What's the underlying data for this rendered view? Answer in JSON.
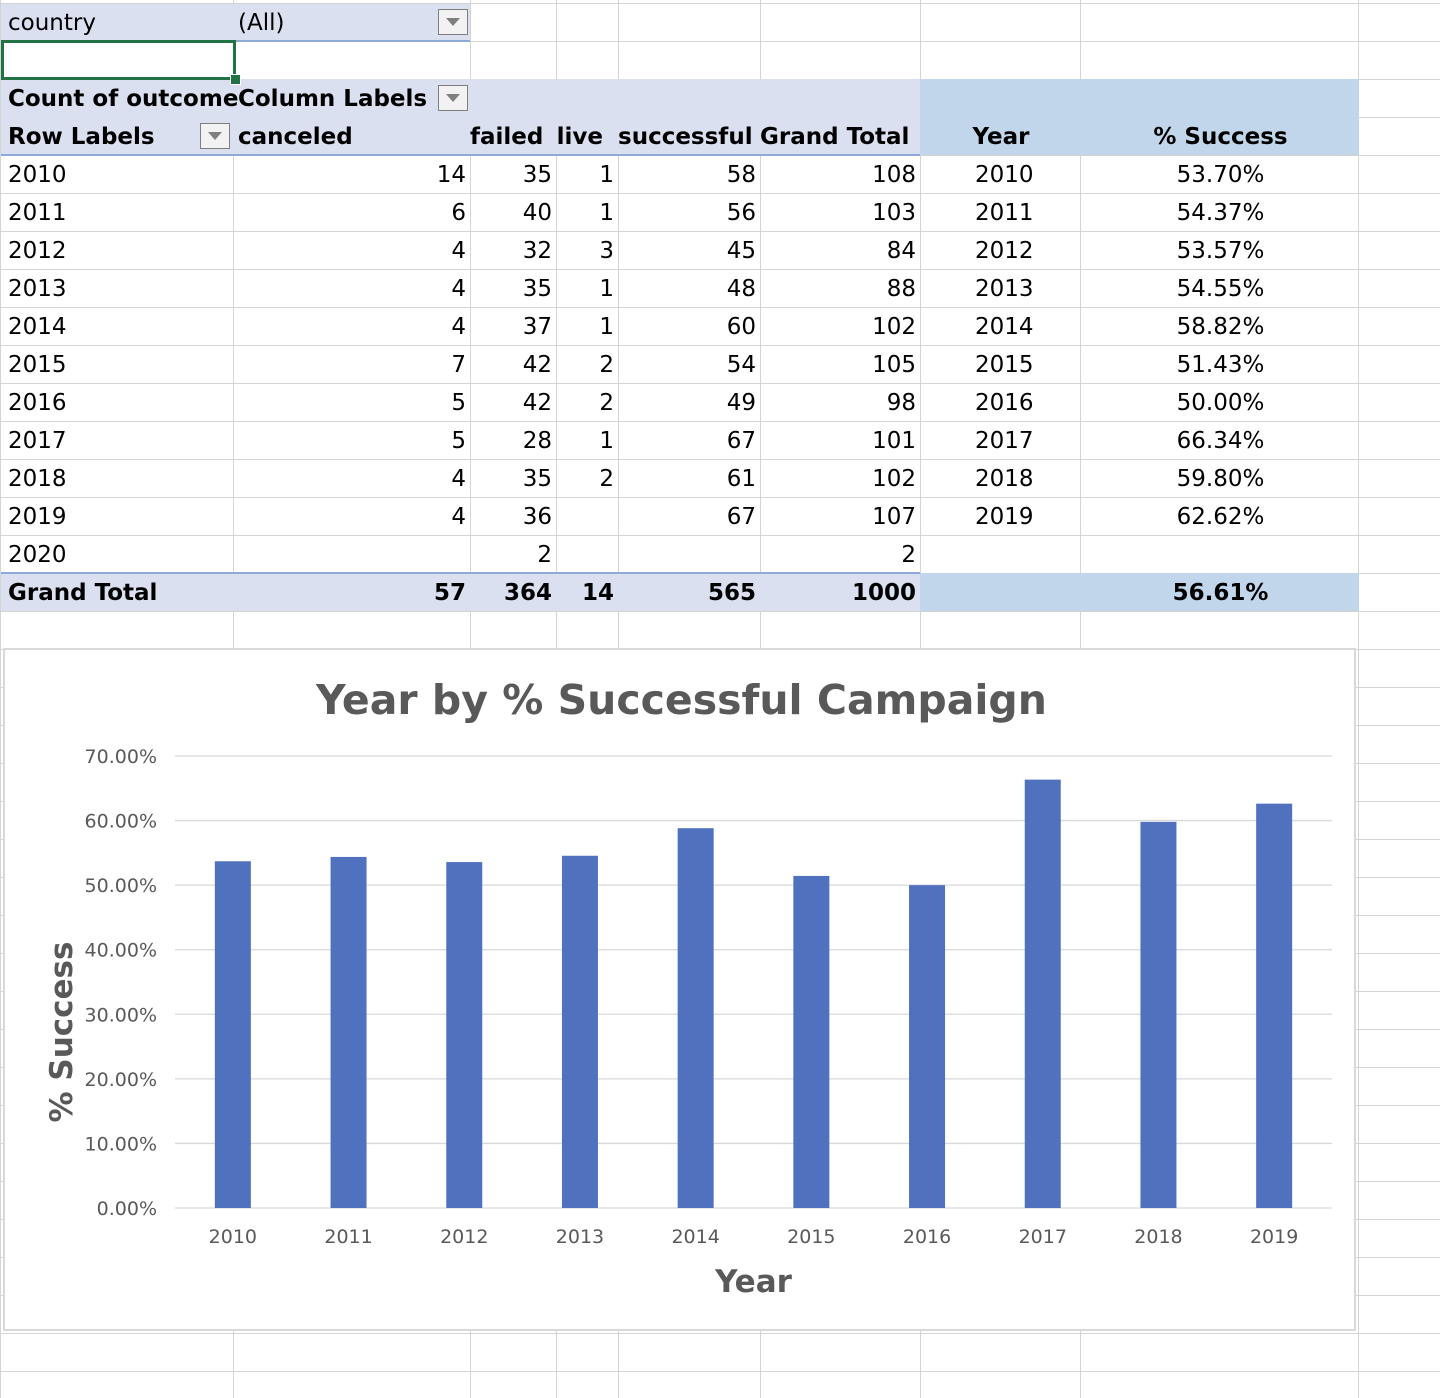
{
  "filter": {
    "label": "country",
    "value": "(All)"
  },
  "pivot": {
    "value_caption": "Count of outcome",
    "column_labels_caption": "Column Labels",
    "row_labels_caption": "Row Labels",
    "columns": [
      "canceled",
      "failed",
      "live",
      "successful",
      "Grand Total"
    ],
    "rows": [
      {
        "year": "2010",
        "canceled": "14",
        "failed": "35",
        "live": "1",
        "successful": "58",
        "total": "108"
      },
      {
        "year": "2011",
        "canceled": "6",
        "failed": "40",
        "live": "1",
        "successful": "56",
        "total": "103"
      },
      {
        "year": "2012",
        "canceled": "4",
        "failed": "32",
        "live": "3",
        "successful": "45",
        "total": "84"
      },
      {
        "year": "2013",
        "canceled": "4",
        "failed": "35",
        "live": "1",
        "successful": "48",
        "total": "88"
      },
      {
        "year": "2014",
        "canceled": "4",
        "failed": "37",
        "live": "1",
        "successful": "60",
        "total": "102"
      },
      {
        "year": "2015",
        "canceled": "7",
        "failed": "42",
        "live": "2",
        "successful": "54",
        "total": "105"
      },
      {
        "year": "2016",
        "canceled": "5",
        "failed": "42",
        "live": "2",
        "successful": "49",
        "total": "98"
      },
      {
        "year": "2017",
        "canceled": "5",
        "failed": "28",
        "live": "1",
        "successful": "67",
        "total": "101"
      },
      {
        "year": "2018",
        "canceled": "4",
        "failed": "35",
        "live": "2",
        "successful": "61",
        "total": "102"
      },
      {
        "year": "2019",
        "canceled": "4",
        "failed": "36",
        "live": "",
        "successful": "67",
        "total": "107"
      },
      {
        "year": "2020",
        "canceled": "",
        "failed": "2",
        "live": "",
        "successful": "",
        "total": "2"
      }
    ],
    "grand_total": {
      "label": "Grand Total",
      "canceled": "57",
      "failed": "364",
      "live": "14",
      "successful": "565",
      "total": "1000"
    }
  },
  "success_table": {
    "year_header": "Year",
    "pct_header": "% Success",
    "rows": [
      {
        "year": "2010",
        "pct": "53.70%"
      },
      {
        "year": "2011",
        "pct": "54.37%"
      },
      {
        "year": "2012",
        "pct": "53.57%"
      },
      {
        "year": "2013",
        "pct": "54.55%"
      },
      {
        "year": "2014",
        "pct": "58.82%"
      },
      {
        "year": "2015",
        "pct": "51.43%"
      },
      {
        "year": "2016",
        "pct": "50.00%"
      },
      {
        "year": "2017",
        "pct": "66.34%"
      },
      {
        "year": "2018",
        "pct": "59.80%"
      },
      {
        "year": "2019",
        "pct": "62.62%"
      }
    ],
    "overall": "56.61%"
  },
  "colors": {
    "bar": "#4f71be",
    "header_band": "#dae0f0",
    "side_band": "#c1d6ea",
    "selection": "#217346"
  },
  "chart_data": {
    "type": "bar",
    "title": "Year by % Successful Campaign",
    "xlabel": "Year",
    "ylabel": "% Success",
    "categories": [
      "2010",
      "2011",
      "2012",
      "2013",
      "2014",
      "2015",
      "2016",
      "2017",
      "2018",
      "2019"
    ],
    "values": [
      53.7,
      54.37,
      53.57,
      54.55,
      58.82,
      51.43,
      50.0,
      66.34,
      59.8,
      62.62
    ],
    "ylim": [
      0,
      70
    ],
    "yticks": [
      "0.00%",
      "10.00%",
      "20.00%",
      "30.00%",
      "40.00%",
      "50.00%",
      "60.00%",
      "70.00%"
    ],
    "grid": true,
    "legend": "none"
  }
}
